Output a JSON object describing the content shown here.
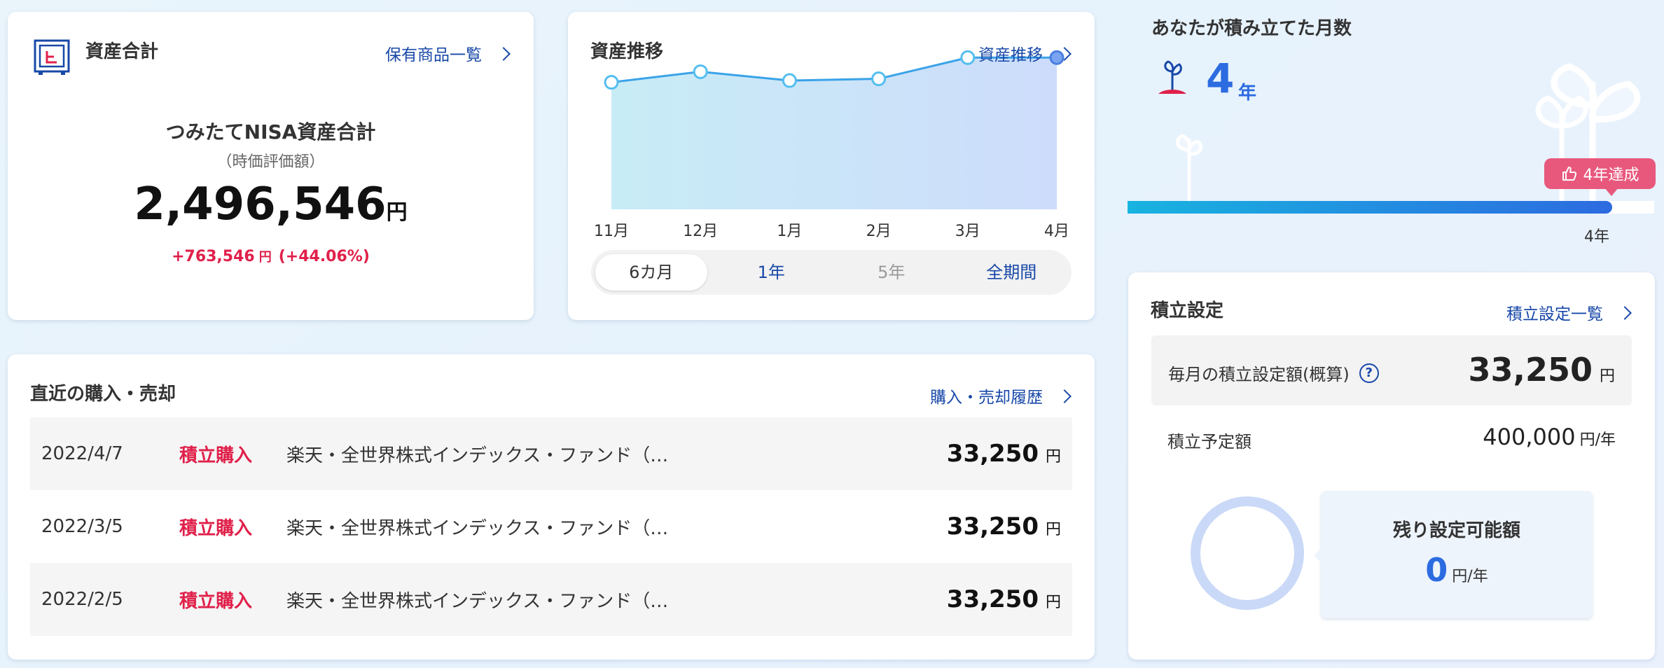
{
  "asset_total": {
    "title": "資産合計",
    "link": "保有商品一覧",
    "label": "つみたてNISA資産合計",
    "sub_label": "（時価評価額）",
    "amount": "2,496,546",
    "amount_unit": "円",
    "gain": "+763,546",
    "gain_unit": "円",
    "gain_pct": "(+44.06%)"
  },
  "trend": {
    "title": "資産推移",
    "link": "資産推移",
    "periods": [
      {
        "label": "6カ月",
        "state": "active"
      },
      {
        "label": "1年",
        "state": "link"
      },
      {
        "label": "5年",
        "state": "disabled"
      },
      {
        "label": "全期間",
        "state": "link"
      }
    ]
  },
  "chart_data": {
    "type": "area",
    "categories": [
      "11月",
      "12月",
      "1月",
      "2月",
      "3月",
      "4月"
    ],
    "values": [
      0.72,
      0.78,
      0.73,
      0.74,
      0.86,
      0.86
    ],
    "title": "",
    "xlabel": "",
    "ylabel": "",
    "colors": {
      "line": "#3aa3e8",
      "fill_start": "#c8ecf6",
      "fill_end": "#cddcfb",
      "point": "#55bef0"
    }
  },
  "recent": {
    "title": "直近の購入・売却",
    "link": "購入・売却履歴",
    "amount_unit": "円",
    "rows": [
      {
        "date": "2022/4/7",
        "type": "積立購入",
        "fund": "楽天・全世界株式インデックス・ファンド（…",
        "amount": "33,250"
      },
      {
        "date": "2022/3/5",
        "type": "積立購入",
        "fund": "楽天・全世界株式インデックス・ファンド（…",
        "amount": "33,250"
      },
      {
        "date": "2022/2/5",
        "type": "積立購入",
        "fund": "楽天・全世界株式インデックス・ファンド（…",
        "amount": "33,250"
      }
    ]
  },
  "months": {
    "title": "あなたが積み立てた月数",
    "num": "4",
    "unit": "年",
    "achievement": "4年達成",
    "bar_end_label": "4年",
    "progress": 0.92
  },
  "plan": {
    "title": "積立設定",
    "link": "積立設定一覧",
    "monthly_label": "毎月の積立設定額(概算)",
    "monthly_amount": "33,250",
    "monthly_unit": "円",
    "yearly_label": "積立予定額",
    "yearly_amount": "400,000",
    "yearly_unit": "円/年",
    "remain_label": "残り設定可能額",
    "remain_value": "0",
    "remain_unit": "円/年"
  },
  "colors": {
    "accent": "#2c6be0",
    "link": "#1848a8",
    "alert": "#e0204a",
    "badge": "#e8587d"
  }
}
